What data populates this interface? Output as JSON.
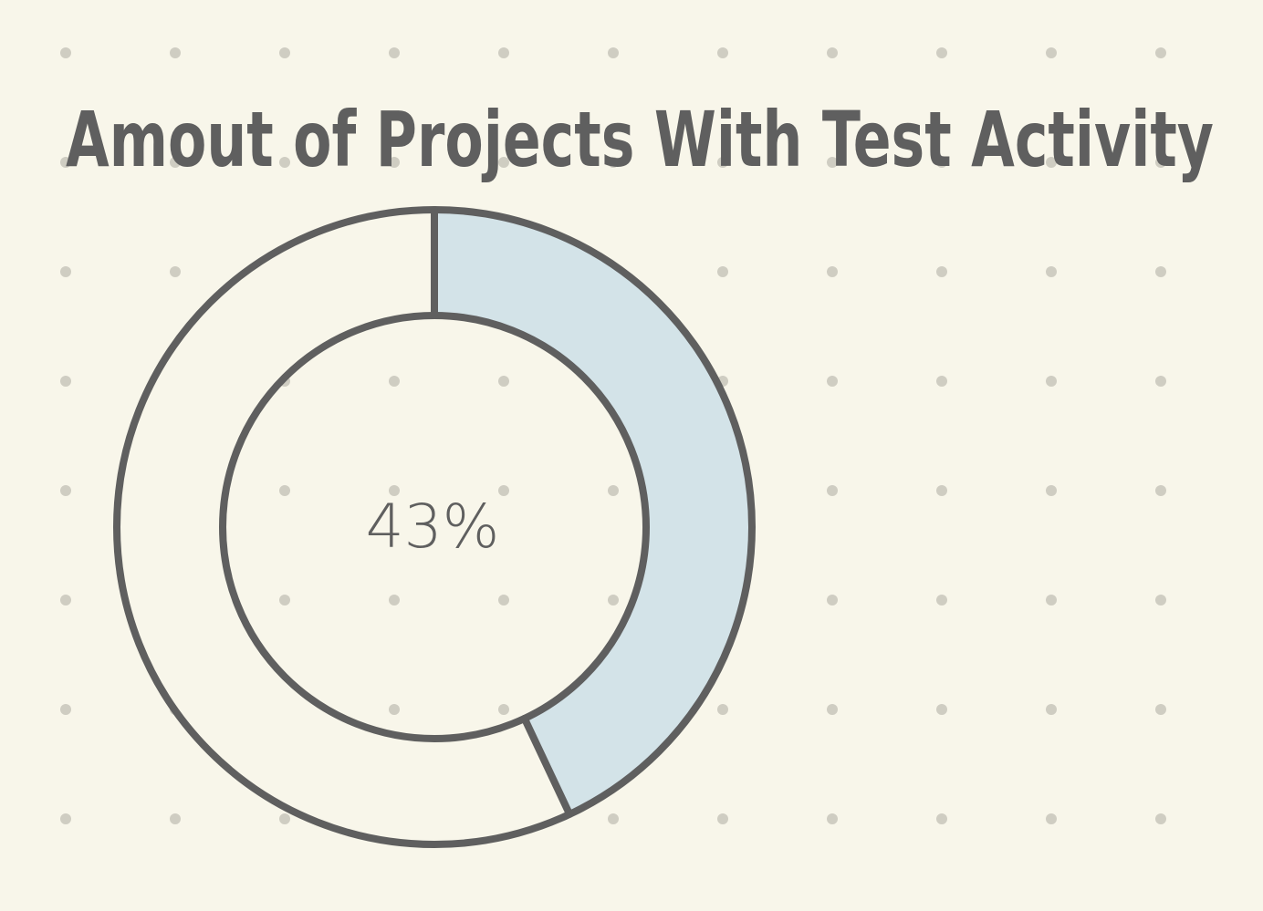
{
  "colors": {
    "background": "#f8f6ea",
    "dot": "#cfcdc2",
    "stroke": "#5f5f5f",
    "highlight_fill": "#d3e3e8"
  },
  "chart_data": {
    "type": "pie",
    "title": "Amout of Projects With Test Activity",
    "hole": true,
    "center_label": "43%",
    "value_percent": 43,
    "slices": [
      {
        "value": 43,
        "color": "#d3e3e8"
      },
      {
        "value": 57,
        "color": "#f8f6ea"
      }
    ]
  }
}
